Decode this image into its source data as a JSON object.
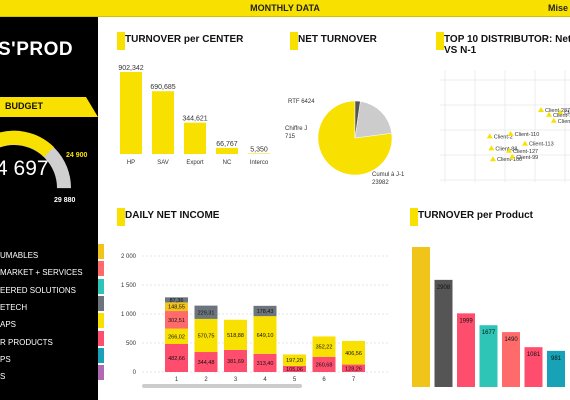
{
  "header": {
    "title": "MONTHLY DATA",
    "right_text": "Mise"
  },
  "sidebar": {
    "logo": "S'PROD",
    "budget_label": "BUDGET",
    "gauge": {
      "main_value": "4 697",
      "target": "24 900",
      "max": "29 880"
    },
    "items": [
      {
        "label": "UMABLES",
        "color": "#f0c419"
      },
      {
        "label": "MARKET + SERVICES",
        "color": "#ff6b6b"
      },
      {
        "label": "EERED SOLUTIONS",
        "color": "#2ec4b6"
      },
      {
        "label": "ETECH",
        "color": "#6c757d"
      },
      {
        "label": "APS",
        "color": "#f8e000"
      },
      {
        "label": "R PRODUCTS",
        "color": "#ff4d6d"
      },
      {
        "label": "PS",
        "color": "#17a2b8"
      },
      {
        "label": "S",
        "color": "#b06ab3"
      }
    ],
    "colors": {
      "accent": "#f8e000",
      "background": "#000000"
    }
  },
  "panels": {
    "turnover_center": "TURNOVER per CENTER",
    "net_turnover": "NET TURNOVER",
    "top10": "TOP 10 DISTRIBUTOR: Net Tur",
    "top10_sub": "VS N-1",
    "daily": "DAILY NET INCOME",
    "product": "TURNOVER per Product"
  },
  "chart_data": [
    {
      "id": "turnover_center",
      "type": "bar",
      "categories": [
        "HP",
        "SAV",
        "Export",
        "NC",
        "Interco"
      ],
      "values": [
        902342,
        690685,
        344621,
        66767,
        5350
      ],
      "data_labels": [
        "902,342",
        "690,685",
        "344,621",
        "66,767",
        "5,350"
      ],
      "color": "#f8e000"
    },
    {
      "id": "net_turnover",
      "type": "pie",
      "slices": [
        {
          "label": "Cumul à J-1",
          "value": 23982,
          "color": "#f8e000",
          "text": [
            "Cumul à J-1",
            "23982"
          ]
        },
        {
          "label": "RTF",
          "value": 6424,
          "color": "#cccccc",
          "text": [
            "RTF 6424"
          ]
        },
        {
          "label": "Chiffre J",
          "value": 715,
          "color": "#555555",
          "text": [
            "Chiffre J",
            "715"
          ]
        }
      ]
    },
    {
      "id": "top10",
      "type": "scatter",
      "color": "#f8e000",
      "points": [
        {
          "label": "Client-287",
          "x": 6.0,
          "y": 6.0
        },
        {
          "label": "Client-158",
          "x": 7.2,
          "y": 5.8
        },
        {
          "label": "Client-120",
          "x": 6.5,
          "y": 5.6
        },
        {
          "label": "Client-137",
          "x": 6.8,
          "y": 5.1
        },
        {
          "label": "Client-2",
          "x": 2.8,
          "y": 3.8
        },
        {
          "label": "Client-110",
          "x": 4.1,
          "y": 4.0
        },
        {
          "label": "Client-113",
          "x": 5.0,
          "y": 3.2
        },
        {
          "label": "Client-88",
          "x": 2.9,
          "y": 2.8
        },
        {
          "label": "Client-127",
          "x": 4.0,
          "y": 2.6
        },
        {
          "label": "Client-100",
          "x": 3.0,
          "y": 1.9
        },
        {
          "label": "Client-99",
          "x": 4.2,
          "y": 2.1
        }
      ]
    },
    {
      "id": "daily",
      "type": "bar",
      "stacked": true,
      "categories": [
        "1",
        "2",
        "3",
        "4",
        "5",
        "6",
        "7"
      ],
      "yticks": [
        "0",
        "500",
        "1 000",
        "1 500",
        "2 000"
      ],
      "ylim": [
        0,
        2000
      ],
      "series": [
        {
          "color": "#2ec4b6",
          "values": [
            0,
            0,
            0,
            0,
            0,
            0,
            0
          ],
          "labels": [
            "",
            "",
            "",
            "",
            "",
            "",
            ""
          ]
        },
        {
          "color": "#ff4d6d",
          "values": [
            482.66,
            344.48,
            381.69,
            313.4,
            105.06,
            260.68,
            128.26
          ],
          "labels": [
            "482,66",
            "344,48",
            "381,69",
            "313,40",
            "105,06",
            "260,68",
            "128,26"
          ]
        },
        {
          "color": "#f8e000",
          "values": [
            266.02,
            570.75,
            518.88,
            649.1,
            197.2,
            352.22,
            406.56
          ],
          "labels": [
            "266,02",
            "570,75",
            "518,88",
            "649,10",
            "197,20",
            "352,22",
            "406,56"
          ]
        },
        {
          "color": "#ff6b6b",
          "values": [
            302.51,
            0,
            0,
            0,
            0,
            0,
            0
          ],
          "labels": [
            "302,51",
            "",
            "",
            "",
            "",
            "",
            ""
          ]
        },
        {
          "color": "#f0c419",
          "values": [
            148.55,
            0,
            0,
            0,
            0,
            0,
            0
          ],
          "labels": [
            "148,55",
            "",
            "",
            "",
            "",
            "",
            ""
          ]
        },
        {
          "color": "#6c757d",
          "values": [
            87.36,
            229.31,
            0,
            178.43,
            0,
            0,
            0
          ],
          "labels": [
            "87,36",
            "229,31",
            "",
            "178,43",
            "",
            "",
            ""
          ]
        }
      ]
    },
    {
      "id": "product",
      "type": "bar",
      "values": [
        3800,
        2908,
        1999,
        1677,
        1490,
        1081,
        981
      ],
      "data_labels": [
        "",
        "2908",
        "1999",
        "1677",
        "1490",
        "1081",
        "981"
      ],
      "colors": [
        "#f0c419",
        "#555555",
        "#ff4d6d",
        "#2ec4b6",
        "#ff6b6b",
        "#ff4d6d",
        "#17a2b8"
      ]
    }
  ]
}
